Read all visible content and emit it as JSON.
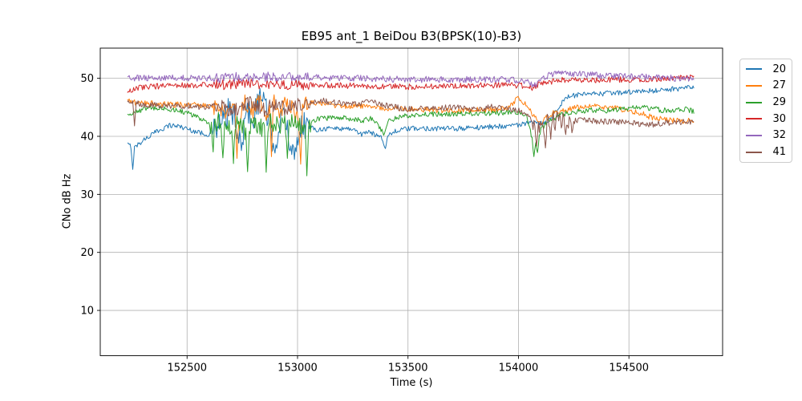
{
  "chart_data": {
    "type": "line",
    "title": "EB95 ant_1 BeiDou B3(BPSK(10)-B3)",
    "xlabel": "Time (s)",
    "ylabel": "CNo dB Hz",
    "xlim": [
      152107,
      154924
    ],
    "ylim": [
      2.2,
      55.2
    ],
    "xticks": [
      152500,
      153000,
      153500,
      154000,
      154500
    ],
    "yticks": [
      10,
      20,
      30,
      40,
      50
    ],
    "grid": true,
    "grid_color": "#b0b0b0",
    "legend_position": "outside-right",
    "legend_title": "",
    "series": [
      {
        "name": "20",
        "color": "#1f77b4",
        "noise": 0.45,
        "anchors": [
          [
            152230,
            38.6
          ],
          [
            152260,
            38.0
          ],
          [
            152300,
            39.3
          ],
          [
            152340,
            40.3
          ],
          [
            152380,
            41.2
          ],
          [
            152420,
            41.9
          ],
          [
            152460,
            41.8
          ],
          [
            152500,
            41.3
          ],
          [
            152550,
            40.7
          ],
          [
            152600,
            40.3
          ],
          [
            152640,
            41.5
          ],
          [
            152680,
            43.5
          ],
          [
            152700,
            45.5
          ],
          [
            152720,
            41.0
          ],
          [
            152740,
            38.5
          ],
          [
            152760,
            42.0
          ],
          [
            152780,
            44.5
          ],
          [
            152800,
            43.0
          ],
          [
            152820,
            46.0
          ],
          [
            152840,
            46.5
          ],
          [
            152860,
            44.0
          ],
          [
            152880,
            40.0
          ],
          [
            152900,
            39.0
          ],
          [
            152920,
            42.0
          ],
          [
            152940,
            43.5
          ],
          [
            152960,
            40.0
          ],
          [
            152980,
            38.0
          ],
          [
            153000,
            40.0
          ],
          [
            153020,
            42.5
          ],
          [
            153040,
            41.8
          ],
          [
            153080,
            41.2
          ],
          [
            153150,
            41.4
          ],
          [
            153250,
            41.3
          ],
          [
            153290,
            40.3
          ],
          [
            153310,
            40.8
          ],
          [
            153380,
            40.0
          ],
          [
            153395,
            38.3
          ],
          [
            153410,
            40.2
          ],
          [
            153450,
            41.0
          ],
          [
            153500,
            41.3
          ],
          [
            153600,
            41.4
          ],
          [
            153700,
            41.3
          ],
          [
            153800,
            41.5
          ],
          [
            153900,
            41.7
          ],
          [
            154000,
            42.0
          ],
          [
            154060,
            42.3
          ],
          [
            154100,
            42.2
          ],
          [
            154130,
            42.5
          ],
          [
            154170,
            44.5
          ],
          [
            154220,
            46.8
          ],
          [
            154270,
            47.1
          ],
          [
            154350,
            47.3
          ],
          [
            154450,
            47.5
          ],
          [
            154550,
            47.7
          ],
          [
            154650,
            48.0
          ],
          [
            154750,
            48.3
          ],
          [
            154795,
            48.4
          ]
        ],
        "spikes": [
          [
            152252,
            34.3
          ],
          [
            152845,
            47.6
          ],
          [
            152985,
            36.0
          ],
          [
            153398,
            37.9
          ]
        ],
        "noisy": [
          [
            152620,
            153050,
            2.0
          ]
        ]
      },
      {
        "name": "27",
        "color": "#ff7f0e",
        "noise": 0.5,
        "anchors": [
          [
            152230,
            46.6
          ],
          [
            152245,
            45.9
          ],
          [
            152300,
            45.7
          ],
          [
            152400,
            45.5
          ],
          [
            152500,
            45.4
          ],
          [
            152600,
            45.3
          ],
          [
            152640,
            45.0
          ],
          [
            152680,
            44.0
          ],
          [
            152700,
            46.0
          ],
          [
            152730,
            43.0
          ],
          [
            152760,
            45.8
          ],
          [
            152800,
            44.5
          ],
          [
            152830,
            46.3
          ],
          [
            152860,
            43.5
          ],
          [
            152890,
            46.0
          ],
          [
            152920,
            44.0
          ],
          [
            152950,
            46.2
          ],
          [
            152980,
            44.5
          ],
          [
            153010,
            42.0
          ],
          [
            153030,
            45.8
          ],
          [
            153060,
            45.8
          ],
          [
            153100,
            45.6
          ],
          [
            153200,
            45.3
          ],
          [
            153300,
            45.1
          ],
          [
            153400,
            44.9
          ],
          [
            153500,
            44.7
          ],
          [
            153600,
            44.6
          ],
          [
            153700,
            44.5
          ],
          [
            153800,
            44.5
          ],
          [
            153900,
            44.6
          ],
          [
            153960,
            44.9
          ],
          [
            153995,
            46.8
          ],
          [
            154020,
            46.0
          ],
          [
            154045,
            45.0
          ],
          [
            154070,
            43.5
          ],
          [
            154095,
            42.0
          ],
          [
            154120,
            43.0
          ],
          [
            154160,
            44.0
          ],
          [
            154220,
            44.6
          ],
          [
            154280,
            45.1
          ],
          [
            154340,
            45.1
          ],
          [
            154400,
            45.0
          ],
          [
            154450,
            44.8
          ],
          [
            154500,
            44.4
          ],
          [
            154550,
            44.0
          ],
          [
            154600,
            43.3
          ],
          [
            154650,
            42.9
          ],
          [
            154700,
            42.7
          ],
          [
            154750,
            42.6
          ],
          [
            154795,
            42.9
          ]
        ],
        "spikes": [
          [
            152725,
            36.2
          ],
          [
            152880,
            36.5
          ],
          [
            153012,
            35.2
          ]
        ],
        "noisy": [
          [
            152620,
            153050,
            1.0
          ]
        ]
      },
      {
        "name": "29",
        "color": "#2ca02c",
        "noise": 0.45,
        "anchors": [
          [
            152230,
            44.2
          ],
          [
            152250,
            43.8
          ],
          [
            152300,
            44.7
          ],
          [
            152350,
            44.9
          ],
          [
            152400,
            44.8
          ],
          [
            152450,
            44.5
          ],
          [
            152500,
            44.1
          ],
          [
            152550,
            43.3
          ],
          [
            152600,
            42.0
          ],
          [
            152640,
            42.6
          ],
          [
            152680,
            41.5
          ],
          [
            152720,
            42.3
          ],
          [
            152760,
            41.0
          ],
          [
            152800,
            42.4
          ],
          [
            152840,
            41.2
          ],
          [
            152880,
            42.6
          ],
          [
            152920,
            41.8
          ],
          [
            152960,
            42.2
          ],
          [
            153000,
            42.0
          ],
          [
            153040,
            41.0
          ],
          [
            153070,
            42.7
          ],
          [
            153100,
            43.0
          ],
          [
            153200,
            43.3
          ],
          [
            153290,
            42.7
          ],
          [
            153340,
            43.2
          ],
          [
            153390,
            40.5
          ],
          [
            153410,
            42.8
          ],
          [
            153500,
            43.6
          ],
          [
            153600,
            43.8
          ],
          [
            153700,
            43.9
          ],
          [
            153800,
            44.0
          ],
          [
            153900,
            44.0
          ],
          [
            154000,
            44.2
          ],
          [
            154035,
            43.5
          ],
          [
            154060,
            40.0
          ],
          [
            154080,
            38.5
          ],
          [
            154100,
            41.0
          ],
          [
            154130,
            42.5
          ],
          [
            154170,
            43.3
          ],
          [
            154220,
            44.0
          ],
          [
            154280,
            44.4
          ],
          [
            154350,
            44.5
          ],
          [
            154420,
            44.4
          ],
          [
            154500,
            44.8
          ],
          [
            154550,
            45.0
          ],
          [
            154600,
            44.8
          ],
          [
            154650,
            44.5
          ],
          [
            154700,
            44.4
          ],
          [
            154750,
            44.7
          ],
          [
            154795,
            44.3
          ]
        ],
        "spikes": [
          [
            152618,
            37.3
          ],
          [
            152662,
            36.3
          ],
          [
            152708,
            35.3
          ],
          [
            152772,
            33.9
          ],
          [
            152858,
            33.8
          ],
          [
            152952,
            36.2
          ],
          [
            153042,
            33.2
          ],
          [
            154068,
            36.5
          ],
          [
            154085,
            37.2
          ]
        ],
        "noisy": [
          [
            152600,
            153060,
            1.2
          ]
        ]
      },
      {
        "name": "30",
        "color": "#d62728",
        "noise": 0.5,
        "anchors": [
          [
            152230,
            47.6
          ],
          [
            152270,
            48.3
          ],
          [
            152350,
            48.6
          ],
          [
            152450,
            48.8
          ],
          [
            152550,
            48.8
          ],
          [
            152650,
            48.9
          ],
          [
            152750,
            49.1
          ],
          [
            152850,
            49.0
          ],
          [
            152950,
            48.9
          ],
          [
            153050,
            48.8
          ],
          [
            153150,
            48.8
          ],
          [
            153250,
            48.7
          ],
          [
            153350,
            48.6
          ],
          [
            153450,
            48.6
          ],
          [
            153550,
            48.5
          ],
          [
            153650,
            48.6
          ],
          [
            153750,
            48.7
          ],
          [
            153850,
            48.8
          ],
          [
            153950,
            48.8
          ],
          [
            154030,
            48.7
          ],
          [
            154060,
            48.3
          ],
          [
            154090,
            48.9
          ],
          [
            154130,
            49.3
          ],
          [
            154180,
            49.7
          ],
          [
            154250,
            49.8
          ],
          [
            154350,
            49.7
          ],
          [
            154450,
            49.8
          ],
          [
            154550,
            49.8
          ],
          [
            154650,
            49.9
          ],
          [
            154720,
            50.0
          ],
          [
            154760,
            50.2
          ],
          [
            154795,
            50.1
          ]
        ],
        "spikes": [],
        "noisy": [
          [
            152620,
            153050,
            0.4
          ]
        ]
      },
      {
        "name": "32",
        "color": "#9467bd",
        "noise": 0.55,
        "anchors": [
          [
            152230,
            50.0
          ],
          [
            152350,
            50.1
          ],
          [
            152500,
            50.0
          ],
          [
            152650,
            50.1
          ],
          [
            152800,
            50.3
          ],
          [
            152950,
            50.2
          ],
          [
            153100,
            50.1
          ],
          [
            153250,
            50.0
          ],
          [
            153400,
            49.9
          ],
          [
            153550,
            49.8
          ],
          [
            153700,
            49.8
          ],
          [
            153850,
            49.8
          ],
          [
            153990,
            49.7
          ],
          [
            154040,
            49.4
          ],
          [
            154070,
            48.7
          ],
          [
            154100,
            49.8
          ],
          [
            154140,
            50.6
          ],
          [
            154190,
            50.9
          ],
          [
            154250,
            50.8
          ],
          [
            154320,
            50.6
          ],
          [
            154400,
            50.4
          ],
          [
            154480,
            50.3
          ],
          [
            154560,
            50.2
          ],
          [
            154640,
            50.1
          ],
          [
            154720,
            50.0
          ],
          [
            154795,
            49.8
          ]
        ],
        "spikes": [],
        "noisy": [
          [
            152620,
            153050,
            0.3
          ]
        ]
      },
      {
        "name": "41",
        "color": "#8c564b",
        "noise": 0.5,
        "anchors": [
          [
            152230,
            45.9
          ],
          [
            152300,
            45.5
          ],
          [
            152400,
            45.3
          ],
          [
            152500,
            45.2
          ],
          [
            152600,
            45.0
          ],
          [
            152650,
            45.4
          ],
          [
            152700,
            44.6
          ],
          [
            152750,
            45.1
          ],
          [
            152800,
            45.9
          ],
          [
            152850,
            44.6
          ],
          [
            152900,
            45.4
          ],
          [
            152950,
            44.8
          ],
          [
            153000,
            45.4
          ],
          [
            153050,
            45.9
          ],
          [
            153100,
            46.2
          ],
          [
            153160,
            45.9
          ],
          [
            153220,
            45.5
          ],
          [
            153290,
            45.7
          ],
          [
            153340,
            46.1
          ],
          [
            153400,
            45.3
          ],
          [
            153460,
            44.9
          ],
          [
            153520,
            44.7
          ],
          [
            153580,
            44.8
          ],
          [
            153640,
            44.8
          ],
          [
            153700,
            45.1
          ],
          [
            153760,
            44.8
          ],
          [
            153820,
            44.7
          ],
          [
            153880,
            45.1
          ],
          [
            153940,
            44.8
          ],
          [
            154000,
            44.4
          ],
          [
            154040,
            43.5
          ],
          [
            154070,
            42.0
          ],
          [
            154100,
            41.5
          ],
          [
            154130,
            43.0
          ],
          [
            154160,
            42.5
          ],
          [
            154200,
            43.0
          ],
          [
            154250,
            42.6
          ],
          [
            154300,
            42.8
          ],
          [
            154360,
            42.6
          ],
          [
            154420,
            42.5
          ],
          [
            154480,
            42.4
          ],
          [
            154540,
            42.2
          ],
          [
            154600,
            42.0
          ],
          [
            154660,
            42.3
          ],
          [
            154720,
            42.5
          ],
          [
            154795,
            42.5
          ]
        ],
        "spikes": [
          [
            152262,
            41.8
          ],
          [
            154082,
            38.3
          ],
          [
            154122,
            38.0
          ],
          [
            154145,
            39.5
          ],
          [
            154212,
            40.3
          ],
          [
            154242,
            40.6
          ]
        ],
        "noisy": [
          [
            152620,
            153060,
            0.8
          ],
          [
            154060,
            154260,
            1.2
          ]
        ]
      }
    ]
  }
}
